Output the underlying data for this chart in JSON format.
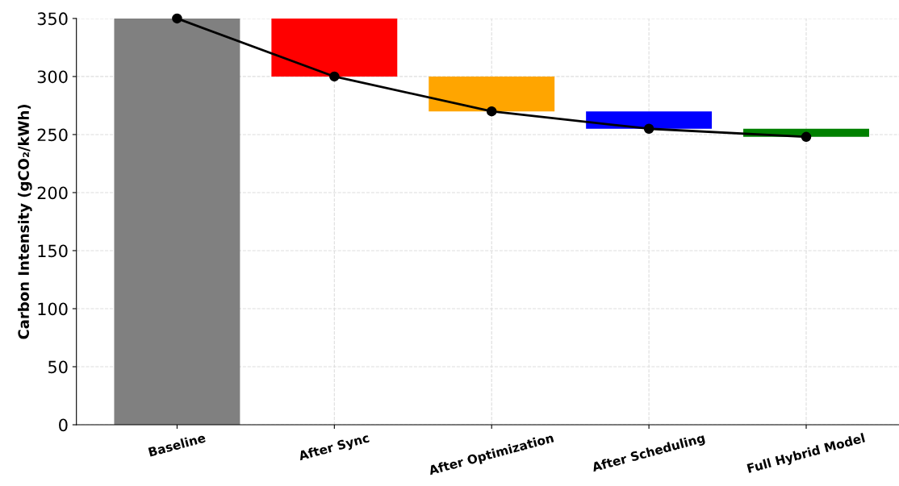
{
  "chart_data": {
    "type": "bar",
    "ylabel": "Carbon Intensity (gCO₂/kWh)",
    "categories": [
      "Baseline",
      "After Sync",
      "After Optimization",
      "After Scheduling",
      "Full Hybrid Model"
    ],
    "series": [
      {
        "values": [
          350,
          50,
          30,
          15,
          7
        ],
        "base": [
          0,
          300,
          270,
          255,
          248
        ],
        "colors": [
          "#808080",
          "#ff0000",
          "#ffa500",
          "#0000ff",
          "#008000"
        ]
      },
      {
        "type": "line",
        "values": [
          350,
          300,
          270,
          255,
          248
        ],
        "color": "#000000",
        "marker": "circle",
        "line_style": "solid"
      }
    ],
    "ylim": [
      0,
      350
    ],
    "yticks": [
      0,
      50,
      100,
      150,
      200,
      250,
      300,
      350
    ],
    "grid": true,
    "legend": false
  }
}
